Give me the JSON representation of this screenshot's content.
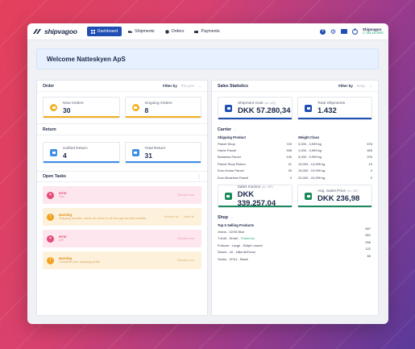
{
  "brand": {
    "logo_text": "shipvagoo"
  },
  "nav": [
    {
      "label": "Dashboard",
      "icon": "dashboard-icon",
      "active": true
    },
    {
      "label": "Shipments",
      "icon": "truck-icon",
      "active": false
    },
    {
      "label": "Orders",
      "icon": "orders-icon",
      "active": false
    },
    {
      "label": "Payments",
      "icon": "card-icon",
      "active": false
    }
  ],
  "account": {
    "name": "Shipvagoo",
    "balance": "1.782,15 DKK"
  },
  "welcome": {
    "title": "Welcome Natteskyen ApS"
  },
  "orders": {
    "title": "Order",
    "filter_label": "Filter by",
    "filter_value": "This year",
    "cards": [
      {
        "label": "New Orders",
        "value": "30",
        "color": "#f2b01e"
      },
      {
        "label": "Ongoing Orders",
        "value": "8",
        "color": "#f2b01e"
      }
    ]
  },
  "returns": {
    "title": "Return",
    "cards": [
      {
        "label": "Unified Return",
        "value": "4",
        "color": "#3d8fe8"
      },
      {
        "label": "Total Return",
        "value": "31",
        "color": "#3d8fe8"
      }
    ]
  },
  "tasks": {
    "title": "Open Tasks",
    "items": [
      {
        "type": "error",
        "message": "Test",
        "actions": [
          "Resolve now"
        ]
      },
      {
        "type": "warning",
        "message": "Shipping provider needs an action to be through an intermediate",
        "actions": [
          "Resolve all",
          "Mark all"
        ]
      },
      {
        "type": "error",
        "message": "API",
        "actions": [
          "Resolve now"
        ]
      },
      {
        "type": "warning",
        "message": "Complete your shipping profile",
        "actions": [
          "Resolve now"
        ]
      }
    ]
  },
  "sales": {
    "title": "Sales Statistics",
    "filter_label": "Filter by",
    "filter_value": "Today",
    "cards": [
      {
        "label": "Shipment Cost",
        "unit": "(ex. VAT)",
        "value": "DKK 57.280,34",
        "color": "#1f4fb3"
      },
      {
        "label": "Total Shipments",
        "unit": "",
        "value": "1.432",
        "color": "#1f4fb3"
      }
    ],
    "invoice_cards": [
      {
        "label": "Sales Invoice",
        "unit": "(ex. VAT)",
        "value": "DKK 339.257,04",
        "color": "#1a8a5a"
      },
      {
        "label": "Avg. Sales Price",
        "unit": "(ex. VAT)",
        "value": "DKK 236,98",
        "color": "#1a8a5a"
      }
    ]
  },
  "carrier": {
    "title": "Carrier",
    "shipping_product_head": "Shipping Product",
    "weight_class_head": "Weight Class",
    "products": [
      {
        "name": "Parcel Shop",
        "count": "749"
      },
      {
        "name": "Home Parcel",
        "count": "398"
      },
      {
        "name": "Business Parcel",
        "count": "126"
      },
      {
        "name": "Parcel Shop Return",
        "count": "31"
      },
      {
        "name": "Euro Home Parcel",
        "count": "39"
      },
      {
        "name": "Euro Business Parcel",
        "count": "0"
      }
    ],
    "weights": [
      {
        "name": "0,000 - 0,999 kg",
        "count": "578"
      },
      {
        "name": "1,000 - 4,999 kg",
        "count": "469"
      },
      {
        "name": "5,000 - 9,999 kg",
        "count": "376"
      },
      {
        "name": "10,000 - 14,999 kg",
        "count": "10"
      },
      {
        "name": "15,000 - 19,999 kg",
        "count": "0"
      },
      {
        "name": "20,000 - 24,999 kg",
        "count": "0"
      }
    ]
  },
  "shop": {
    "title": "Shop",
    "subtitle": "Top 5 Selling Products",
    "products": [
      {
        "name": "Jeans - 32/30 Blue",
        "tag": ""
      },
      {
        "name": "T-shirt - Small -",
        "tag": "Pokemon"
      },
      {
        "name": "Pullover - Large - Ralph Lauren",
        "tag": ""
      },
      {
        "name": "Shoes - 42 - Nike AirForce",
        "tag": ""
      },
      {
        "name": "Socks - 37/41 - Black",
        "tag": ""
      }
    ],
    "counts": [
      "687",
      "552",
      "256",
      "122",
      "85"
    ]
  }
}
